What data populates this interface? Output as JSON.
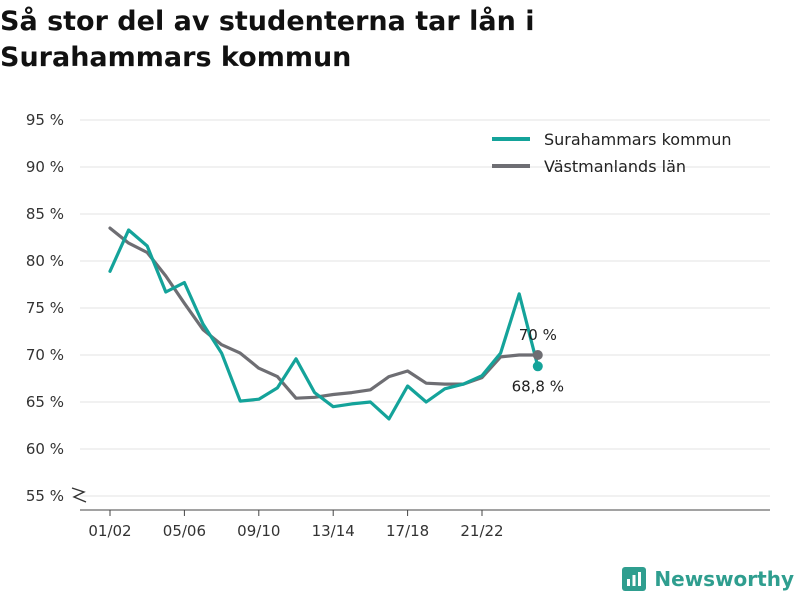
{
  "header": {
    "title_line1": "Så stor del av studenterna tar lån i",
    "title_line2": "Surahammars kommun"
  },
  "brand": {
    "name": "Newsworthy",
    "icon": "bar-chart-icon"
  },
  "chart_data": {
    "type": "line",
    "title": "Så stor del av studenterna tar lån i Surahammars kommun",
    "xlabel": "",
    "ylabel": "",
    "x_ticks": [
      "01/02",
      "05/06",
      "09/10",
      "13/14",
      "17/18",
      "21/22"
    ],
    "x_tick_indices": [
      0,
      4,
      8,
      12,
      16,
      20
    ],
    "y_ticks": [
      55,
      60,
      65,
      70,
      75,
      80,
      85,
      90,
      95
    ],
    "y_tick_labels": [
      "55 %",
      "60 %",
      "65 %",
      "70 %",
      "75 %",
      "80 %",
      "85 %",
      "90 %",
      "95 %"
    ],
    "ylim": [
      54,
      96
    ],
    "y_axis_break": true,
    "grid": true,
    "legend_position": "top-right",
    "series": [
      {
        "name": "Surahammars kommun",
        "color": "#14a39a",
        "values": [
          78.9,
          83.3,
          81.6,
          76.7,
          77.7,
          73.3,
          70.2,
          65.1,
          65.3,
          66.5,
          69.6,
          66.0,
          64.5,
          64.8,
          65.0,
          63.2,
          66.7,
          65.0,
          66.4,
          66.9,
          67.8,
          70.2,
          76.5,
          68.8
        ],
        "end_label": "68,8 %"
      },
      {
        "name": "Västmanlands län",
        "color": "#6e6e73",
        "values": [
          83.5,
          81.9,
          80.9,
          78.4,
          75.5,
          72.7,
          71.1,
          70.2,
          68.6,
          67.7,
          65.4,
          65.5,
          65.8,
          66.0,
          66.3,
          67.7,
          68.3,
          67.0,
          66.9,
          66.9,
          67.6,
          69.8,
          70.0,
          70.0
        ],
        "end_label": "70 %"
      }
    ]
  }
}
